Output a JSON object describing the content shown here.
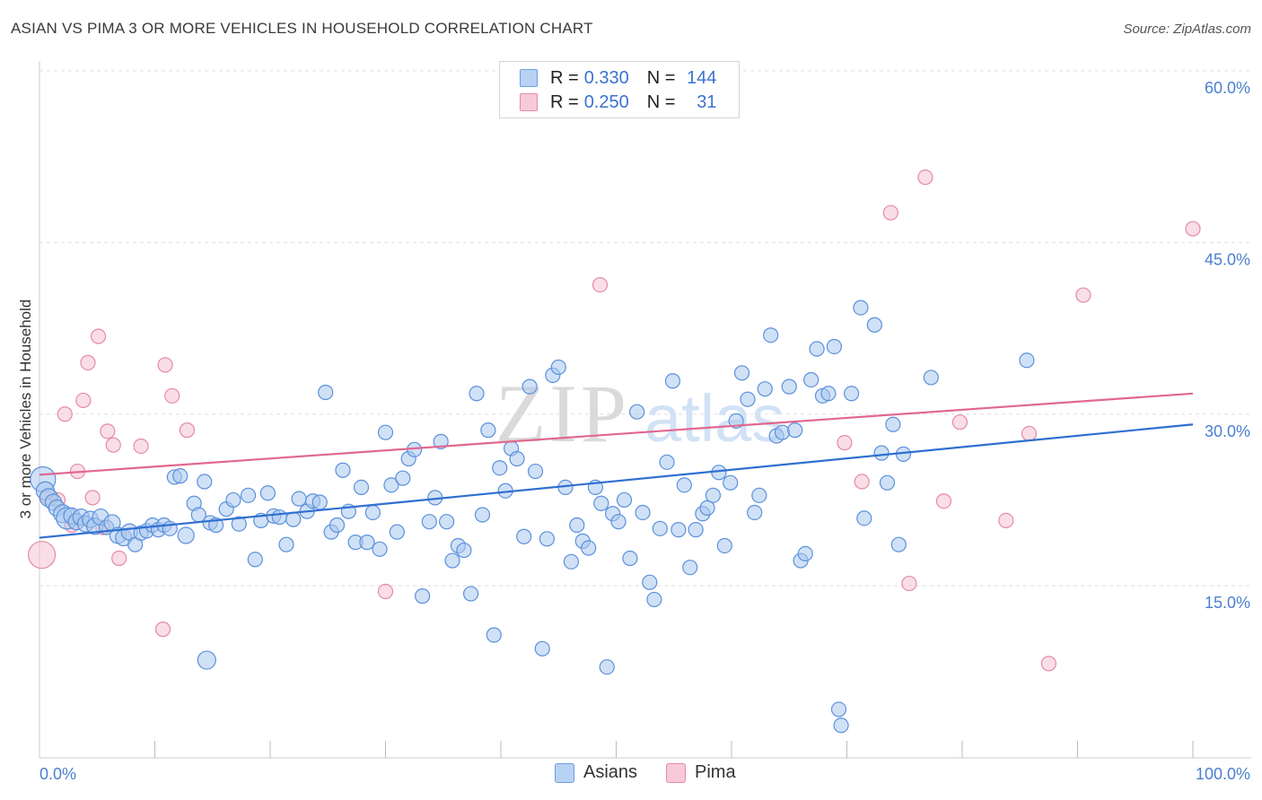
{
  "header": {
    "title": "ASIAN VS PIMA 3 OR MORE VEHICLES IN HOUSEHOLD CORRELATION CHART",
    "source": "Source: ZipAtlas.com"
  },
  "watermark": {
    "zip": "ZIP",
    "atlas": "atlas"
  },
  "legend": {
    "r_label": "R =",
    "n_label": "N =",
    "rows": [
      {
        "name": "Asians",
        "r": "0.330",
        "n": "144",
        "fill": "#a9c8ef",
        "stroke": "#6a9de0"
      },
      {
        "name": "Pima",
        "r": "0.250",
        "n": "31",
        "fill": "#f6bfd0",
        "stroke": "#e58aa8"
      }
    ]
  },
  "colors": {
    "asian_fill": "#a9c8ef",
    "asian_stroke": "#5b90dc",
    "asian_line": "#2f6fd0",
    "pima_fill": "#f6c3d3",
    "pima_stroke": "#e58aa8",
    "pima_line": "#e0688f",
    "tick_text": "#4a7fd0",
    "grid": "#dddddd"
  },
  "chart_data": {
    "type": "scatter",
    "title": "ASIAN VS PIMA 3 OR MORE VEHICLES IN HOUSEHOLD CORRELATION CHART",
    "xlabel": "",
    "ylabel": "3 or more Vehicles in Household",
    "xlim": [
      0,
      100
    ],
    "ylim": [
      0,
      60
    ],
    "x_ticks_labels": [
      "0.0%",
      "100.0%"
    ],
    "y_ticks": [
      15,
      30,
      45,
      60
    ],
    "y_tick_labels": [
      "15.0%",
      "30.0%",
      "45.0%",
      "60.0%"
    ],
    "grid": true,
    "legend_position": "top-center",
    "series": [
      {
        "name": "Asians",
        "r": 0.33,
        "n": 144,
        "trend": {
          "x": [
            0,
            100
          ],
          "y": [
            19.2,
            29.1
          ]
        },
        "points": [
          [
            0.3,
            24.3,
            14
          ],
          [
            0.5,
            23.3,
            10
          ],
          [
            0.8,
            22.7,
            10
          ],
          [
            1.2,
            22.3,
            9
          ],
          [
            1.5,
            21.8,
            9
          ],
          [
            2,
            21.3,
            10
          ],
          [
            2.4,
            20.9,
            12
          ],
          [
            2.8,
            21.1,
            9
          ],
          [
            3.2,
            20.6,
            9
          ],
          [
            3.6,
            21,
            9
          ],
          [
            4,
            20.4,
            9
          ],
          [
            4.4,
            20.8,
            9
          ],
          [
            4.8,
            20.2,
            9
          ],
          [
            5.3,
            21,
            9
          ],
          [
            5.8,
            20.1,
            8
          ],
          [
            6.3,
            20.5,
            9
          ],
          [
            6.8,
            19.4,
            9
          ],
          [
            7.3,
            19.2,
            9
          ],
          [
            7.8,
            19.7,
            9
          ],
          [
            8.3,
            18.6,
            8
          ],
          [
            8.8,
            19.6,
            8
          ],
          [
            9.3,
            19.8,
            8
          ],
          [
            9.8,
            20.3,
            8
          ],
          [
            10.3,
            19.9,
            8
          ],
          [
            10.8,
            20.3,
            8
          ],
          [
            11.3,
            20,
            8
          ],
          [
            11.7,
            24.5,
            8
          ],
          [
            12.2,
            24.6,
            8
          ],
          [
            12.7,
            19.4,
            9
          ],
          [
            13.4,
            22.2,
            8
          ],
          [
            13.8,
            21.2,
            8
          ],
          [
            14.3,
            24.1,
            8
          ],
          [
            14.8,
            20.5,
            8
          ],
          [
            15.3,
            20.3,
            8
          ],
          [
            16.2,
            21.7,
            8
          ],
          [
            16.8,
            22.5,
            8
          ],
          [
            17.3,
            20.4,
            8
          ],
          [
            18.1,
            22.9,
            8
          ],
          [
            18.7,
            17.3,
            8
          ],
          [
            19.2,
            20.7,
            8
          ],
          [
            19.8,
            23.1,
            8
          ],
          [
            20.3,
            21.1,
            8
          ],
          [
            20.8,
            21,
            8
          ],
          [
            21.4,
            18.6,
            8
          ],
          [
            22,
            20.8,
            8
          ],
          [
            22.5,
            22.6,
            8
          ],
          [
            23.2,
            21.5,
            8
          ],
          [
            23.7,
            22.4,
            8
          ],
          [
            24.3,
            22.3,
            8
          ],
          [
            24.8,
            31.9,
            8
          ],
          [
            25.3,
            19.7,
            8
          ],
          [
            25.8,
            20.3,
            8
          ],
          [
            26.3,
            25.1,
            8
          ],
          [
            26.8,
            21.5,
            8
          ],
          [
            27.4,
            18.8,
            8
          ],
          [
            27.9,
            23.6,
            8
          ],
          [
            28.4,
            18.8,
            8
          ],
          [
            28.9,
            21.4,
            8
          ],
          [
            29.5,
            18.2,
            8
          ],
          [
            30,
            28.4,
            8
          ],
          [
            30.5,
            23.8,
            8
          ],
          [
            31,
            19.7,
            8
          ],
          [
            31.5,
            24.4,
            8
          ],
          [
            32,
            26.1,
            8
          ],
          [
            32.5,
            26.9,
            8
          ],
          [
            33.2,
            14.1,
            8
          ],
          [
            33.8,
            20.6,
            8
          ],
          [
            34.3,
            22.7,
            8
          ],
          [
            34.8,
            27.6,
            8
          ],
          [
            35.3,
            20.6,
            8
          ],
          [
            35.8,
            17.2,
            8
          ],
          [
            36.3,
            18.5,
            8
          ],
          [
            36.8,
            18.1,
            8
          ],
          [
            37.4,
            14.3,
            8
          ],
          [
            37.9,
            31.8,
            8
          ],
          [
            38.4,
            21.2,
            8
          ],
          [
            38.9,
            28.6,
            8
          ],
          [
            39.4,
            10.7,
            8
          ],
          [
            39.9,
            25.3,
            8
          ],
          [
            40.4,
            23.3,
            8
          ],
          [
            40.9,
            27,
            8
          ],
          [
            41.4,
            26.1,
            8
          ],
          [
            42,
            19.3,
            8
          ],
          [
            42.5,
            32.4,
            8
          ],
          [
            43,
            25,
            8
          ],
          [
            43.6,
            9.5,
            8
          ],
          [
            44,
            19.1,
            8
          ],
          [
            44.5,
            33.4,
            8
          ],
          [
            45,
            34.1,
            8
          ],
          [
            45.6,
            23.6,
            8
          ],
          [
            46.1,
            17.1,
            8
          ],
          [
            46.6,
            20.3,
            8
          ],
          [
            47.1,
            18.9,
            8
          ],
          [
            47.6,
            18.3,
            8
          ],
          [
            48.2,
            23.6,
            8
          ],
          [
            48.7,
            22.2,
            8
          ],
          [
            49.2,
            7.9,
            8
          ],
          [
            49.7,
            21.3,
            8
          ],
          [
            50.2,
            20.6,
            8
          ],
          [
            50.7,
            22.5,
            8
          ],
          [
            51.2,
            17.4,
            8
          ],
          [
            51.8,
            30.2,
            8
          ],
          [
            52.3,
            21.4,
            8
          ],
          [
            52.9,
            15.3,
            8
          ],
          [
            53.3,
            13.8,
            8
          ],
          [
            53.8,
            20,
            8
          ],
          [
            54.4,
            25.8,
            8
          ],
          [
            54.9,
            32.9,
            8
          ],
          [
            55.4,
            19.9,
            8
          ],
          [
            55.9,
            23.8,
            8
          ],
          [
            56.4,
            16.6,
            8
          ],
          [
            56.9,
            19.9,
            8
          ],
          [
            57.5,
            21.3,
            8
          ],
          [
            57.9,
            21.8,
            8
          ],
          [
            58.4,
            22.9,
            8
          ],
          [
            58.9,
            24.9,
            8
          ],
          [
            59.4,
            18.5,
            8
          ],
          [
            59.9,
            24,
            8
          ],
          [
            60.4,
            29.4,
            8
          ],
          [
            60.9,
            33.6,
            8
          ],
          [
            61.4,
            31.3,
            8
          ],
          [
            62,
            21.4,
            8
          ],
          [
            62.4,
            22.9,
            8
          ],
          [
            62.9,
            32.2,
            8
          ],
          [
            63.4,
            36.9,
            8
          ],
          [
            63.9,
            28.1,
            8
          ],
          [
            64.4,
            28.4,
            8
          ],
          [
            65,
            32.4,
            8
          ],
          [
            65.5,
            28.6,
            8
          ],
          [
            66,
            17.2,
            8
          ],
          [
            66.4,
            17.8,
            8
          ],
          [
            66.9,
            33,
            8
          ],
          [
            67.4,
            35.7,
            8
          ],
          [
            67.9,
            31.6,
            8
          ],
          [
            68.4,
            31.8,
            8
          ],
          [
            68.9,
            35.9,
            8
          ],
          [
            69.3,
            4.2,
            8
          ],
          [
            69.5,
            2.8,
            8
          ],
          [
            70.4,
            31.8,
            8
          ],
          [
            71.2,
            39.3,
            8
          ],
          [
            71.5,
            20.9,
            8
          ],
          [
            72.4,
            37.8,
            8
          ],
          [
            73,
            26.6,
            8
          ],
          [
            73.5,
            24,
            8
          ],
          [
            74,
            29.1,
            8
          ],
          [
            74.5,
            18.6,
            8
          ],
          [
            74.9,
            26.5,
            8
          ],
          [
            77.3,
            33.2,
            8
          ],
          [
            85.6,
            34.7,
            8
          ],
          [
            14.5,
            8.5,
            10
          ]
        ]
      },
      {
        "name": "Pima",
        "r": 0.25,
        "n": 31,
        "trend": {
          "x": [
            0,
            100
          ],
          "y": [
            24.7,
            31.8
          ]
        },
        "points": [
          [
            0.2,
            17.7,
            15
          ],
          [
            0.8,
            22.8,
            9
          ],
          [
            1.6,
            22.5,
            8
          ],
          [
            2.2,
            30,
            8
          ],
          [
            2.8,
            20.3,
            8
          ],
          [
            3.3,
            25,
            8
          ],
          [
            3.8,
            31.2,
            8
          ],
          [
            4.2,
            34.5,
            8
          ],
          [
            4.6,
            22.7,
            8
          ],
          [
            5.1,
            36.8,
            8
          ],
          [
            5.5,
            20.1,
            8
          ],
          [
            5.9,
            28.5,
            8
          ],
          [
            6.4,
            27.3,
            8
          ],
          [
            6.9,
            17.4,
            8
          ],
          [
            8.8,
            27.2,
            8
          ],
          [
            10.7,
            11.2,
            8
          ],
          [
            10.9,
            34.3,
            8
          ],
          [
            11.5,
            31.6,
            8
          ],
          [
            12.8,
            28.6,
            8
          ],
          [
            30,
            14.5,
            8
          ],
          [
            48.6,
            41.3,
            8
          ],
          [
            69.8,
            27.5,
            8
          ],
          [
            71.3,
            24.1,
            8
          ],
          [
            73.8,
            47.6,
            8
          ],
          [
            75.4,
            15.2,
            8
          ],
          [
            76.8,
            50.7,
            8
          ],
          [
            78.4,
            22.4,
            8
          ],
          [
            79.8,
            29.3,
            8
          ],
          [
            83.8,
            20.7,
            8
          ],
          [
            85.8,
            28.3,
            8
          ],
          [
            87.5,
            8.2,
            8
          ],
          [
            90.5,
            40.4,
            8
          ],
          [
            100,
            46.2,
            8
          ]
        ]
      }
    ]
  }
}
